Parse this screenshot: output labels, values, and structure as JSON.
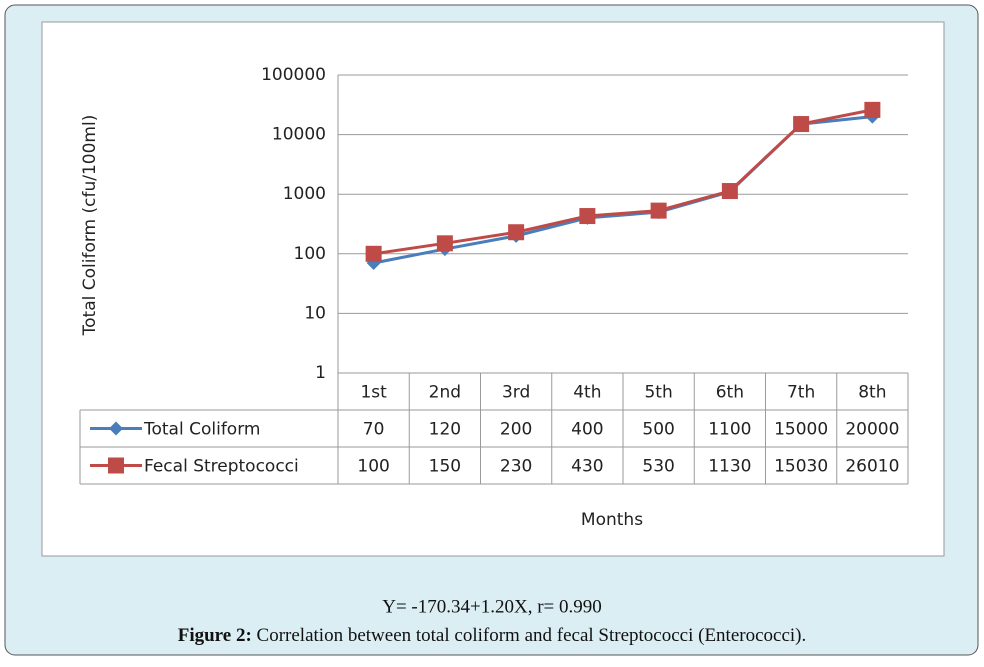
{
  "chart_data": {
    "type": "line",
    "y_label": "Total Coliform (cfu/100ml)",
    "x_label": "Months",
    "categories": [
      "1st",
      "2nd",
      "3rd",
      "4th",
      "5th",
      "6th",
      "7th",
      "8th"
    ],
    "series": [
      {
        "name": "Total Coliform",
        "color": "#4a7ebb",
        "marker": "diamond",
        "values": [
          70,
          120,
          200,
          400,
          500,
          1100,
          15000,
          20000
        ]
      },
      {
        "name": "Fecal Streptococci",
        "color": "#be4b48",
        "marker": "square",
        "values": [
          100,
          150,
          230,
          430,
          530,
          1130,
          15030,
          26010
        ]
      }
    ],
    "ylim": [
      1,
      100000
    ],
    "yticks": [
      1,
      10,
      100,
      1000,
      10000,
      100000
    ],
    "log_scale": true,
    "grid": true,
    "data_table": true
  },
  "annotation": "Y= -170.34+1.20X, r= 0.990",
  "caption": {
    "label": "Figure 2:",
    "text": "Correlation between total coliform and fecal Streptococci (Enterococci)."
  }
}
